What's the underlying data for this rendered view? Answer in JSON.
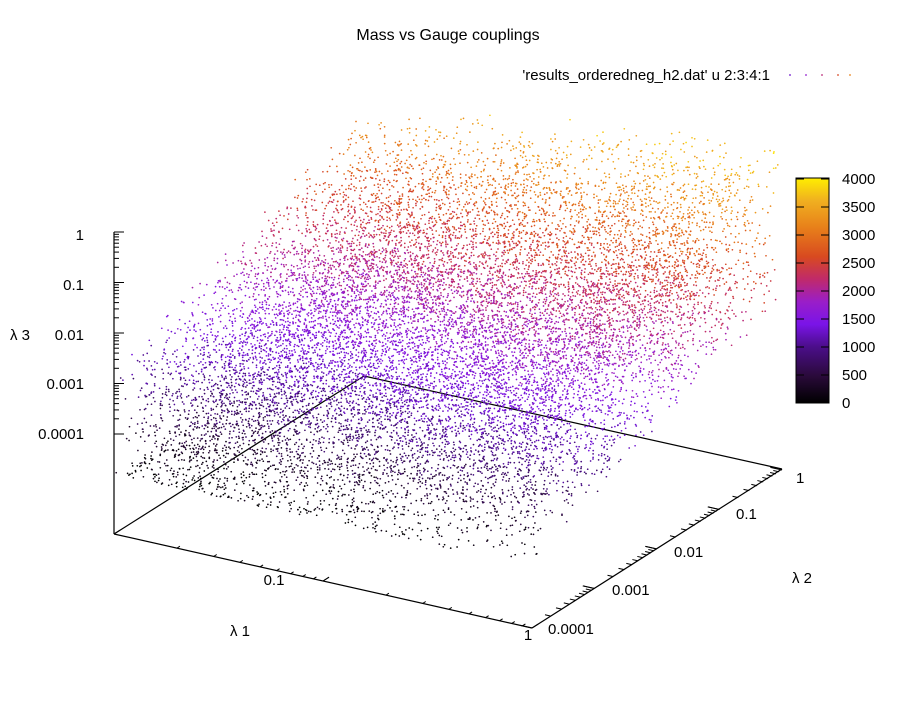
{
  "chart_data": {
    "type": "scatter",
    "projection": "3d",
    "title": "Mass vs Gauge couplings",
    "legend": {
      "label": "'results_orderedneg_h2.dat' u 2:3:4:1",
      "position": "top-right"
    },
    "axes": {
      "x": {
        "label": "λ 1",
        "scale": "log",
        "range": [
          0.01,
          1
        ],
        "ticks": [
          "0.1",
          "1"
        ]
      },
      "y": {
        "label": "λ 2",
        "scale": "log",
        "range": [
          0.0001,
          1
        ],
        "ticks": [
          "0.0001",
          "0.001",
          "0.01",
          "0.1",
          "1"
        ]
      },
      "z": {
        "label": "λ 3",
        "scale": "log",
        "range": [
          0.0001,
          1
        ],
        "ticks": [
          "0.0001",
          "0.001",
          "0.01",
          "0.1",
          "1"
        ]
      }
    },
    "colorbar": {
      "range": [
        0,
        4000
      ],
      "ticks": [
        "0",
        "500",
        "1000",
        "1500",
        "2000",
        "2500",
        "3000",
        "3500",
        "4000"
      ],
      "palette": [
        "#000000",
        "#2a0a3a",
        "#4b0e8a",
        "#7a14e8",
        "#9a1ec8",
        "#c02a6a",
        "#d84a20",
        "#e8801a",
        "#f0b020",
        "#ffee00"
      ]
    },
    "series": [
      {
        "name": "'results_orderedneg_h2.dat' u 2:3:4:1",
        "marker": "dot",
        "note_count": "dense scatter (~tens of thousands of points)"
      }
    ],
    "grid": false
  }
}
